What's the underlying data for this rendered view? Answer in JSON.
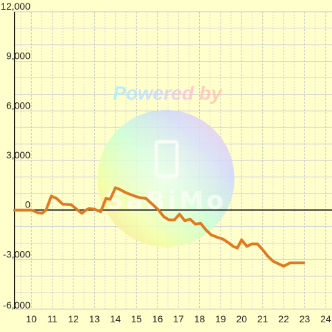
{
  "colors": {
    "background": "#ffffcc",
    "grid_major": "#c8c8c8",
    "grid_minor": "#d6d6d6",
    "axis": "#222222",
    "line": "#e07a20"
  },
  "watermark": {
    "text": "Powered by",
    "logo_text": "SaBiMo"
  },
  "chart_data": {
    "type": "line",
    "xlim": [
      9.2,
      24.3
    ],
    "ylim": [
      -6000,
      12000
    ],
    "x_ticks": [
      10,
      11,
      12,
      13,
      14,
      15,
      16,
      17,
      18,
      19,
      20,
      21,
      22,
      23,
      24
    ],
    "x_tick_labels": [
      "10",
      "11",
      "12",
      "13",
      "14",
      "15",
      "16",
      "17",
      "18",
      "19",
      "20",
      "21",
      "22",
      "23",
      "24"
    ],
    "y_ticks": [
      12000,
      9000,
      6000,
      3000,
      0,
      -3000,
      -6000
    ],
    "y_tick_labels": [
      "12,000",
      "9,000",
      "6,000",
      "3,000",
      "0",
      "-3,000",
      "-6,000"
    ],
    "grid": true,
    "series": [
      {
        "x": [
          9.2,
          10.0,
          10.3,
          10.5,
          10.7,
          10.95,
          11.2,
          11.5,
          11.9,
          12.2,
          12.4,
          12.6,
          12.75,
          13.0,
          13.3,
          13.55,
          13.75,
          14.0,
          14.2,
          14.5,
          14.8,
          15.15,
          15.45,
          15.8,
          16.05,
          16.3,
          16.55,
          16.8,
          17.05,
          17.3,
          17.55,
          17.8,
          18.05,
          18.3,
          18.55,
          18.85,
          19.1,
          19.35,
          19.6,
          19.8,
          20.0,
          20.25,
          20.5,
          20.75,
          21.0,
          21.25,
          21.5,
          21.75,
          22.0,
          22.3,
          22.65,
          22.95
        ],
        "y": [
          0,
          0,
          -150,
          -200,
          0,
          850,
          700,
          350,
          320,
          0,
          -200,
          0,
          100,
          50,
          -100,
          700,
          650,
          1350,
          1250,
          1050,
          900,
          750,
          700,
          300,
          0,
          -400,
          -600,
          -600,
          -250,
          -650,
          -550,
          -850,
          -800,
          -1200,
          -1500,
          -1650,
          -1750,
          -1950,
          -2200,
          -2300,
          -1800,
          -2200,
          -2050,
          -2050,
          -2400,
          -2800,
          -3100,
          -3250,
          -3400,
          -3200,
          -3200,
          -3200
        ]
      }
    ]
  }
}
